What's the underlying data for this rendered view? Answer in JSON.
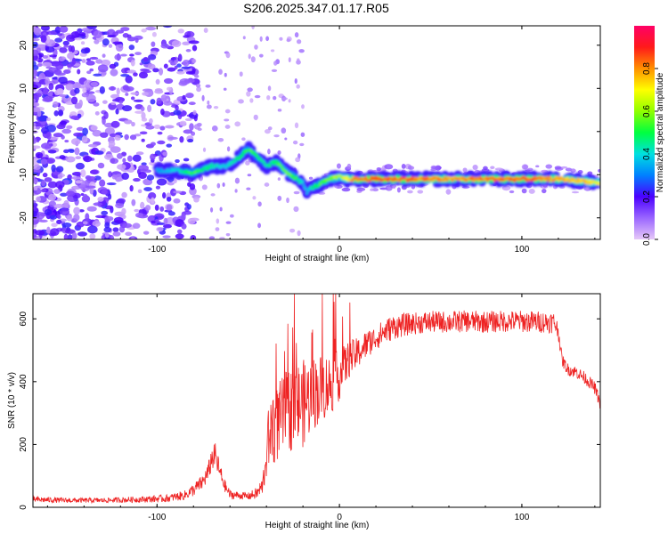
{
  "figure": {
    "title": "S206.2025.347.01.17.R05"
  },
  "chart_data": [
    {
      "type": "heatmap",
      "xlabel": "Height of straight line (km)",
      "ylabel": "Frequency (Hz)",
      "xlim": [
        -168,
        143
      ],
      "ylim": [
        -25,
        24.5
      ],
      "x_ticks": [
        -100,
        0,
        100
      ],
      "y_ticks": [
        -20,
        -10,
        0,
        10,
        20
      ],
      "x_tick_labels": [
        "-100",
        "0",
        "100"
      ],
      "y_tick_labels": [
        "-20",
        "-10",
        "0",
        "10",
        "20"
      ],
      "colorbar": {
        "label": "Normalized spectral amplitude",
        "range": [
          0,
          1
        ],
        "ticks": [
          0.0,
          0.2,
          0.4,
          0.6,
          0.8
        ],
        "tick_labels": [
          "0.0",
          "0.2",
          "0.4",
          "0.6",
          "0.8"
        ],
        "colors": [
          "#e6c8f8",
          "#9a66ff",
          "#4b00ff",
          "#0080ff",
          "#00e0e0",
          "#00ff40",
          "#90ff00",
          "#ffff00",
          "#ff9000",
          "#ff1a1a",
          "#ff0066"
        ]
      },
      "ridge": {
        "x": [
          -100,
          -90,
          -80,
          -70,
          -62,
          -55,
          -50,
          -45,
          -40,
          -35,
          -30,
          -25,
          -20,
          -18,
          -15,
          -10,
          -5,
          0,
          5,
          10,
          20,
          40,
          60,
          80,
          100,
          120,
          135,
          143
        ],
        "y": [
          -9,
          -9,
          -9.5,
          -8,
          -8,
          -6,
          -4,
          -6,
          -8,
          -7,
          -9,
          -10.5,
          -12,
          -14,
          -13,
          -12,
          -11,
          -10.5,
          -11,
          -11,
          -11,
          -11,
          -11,
          -11,
          -11,
          -11,
          -11.5,
          -12
        ],
        "amplitude": [
          0.35,
          0.4,
          0.55,
          0.45,
          0.4,
          0.5,
          0.55,
          0.5,
          0.45,
          0.5,
          0.6,
          0.55,
          0.4,
          0.35,
          0.45,
          0.55,
          0.6,
          0.65,
          0.75,
          0.85,
          0.9,
          0.85,
          0.8,
          0.85,
          0.85,
          0.8,
          0.75,
          0.7
        ]
      }
    },
    {
      "type": "line",
      "xlabel": "Height of straight line (km)",
      "ylabel": "SNR (10 * v/v)",
      "xlim": [
        -168,
        143
      ],
      "ylim": [
        0,
        680
      ],
      "x_ticks": [
        -100,
        0,
        100
      ],
      "y_ticks": [
        0,
        200,
        400,
        600
      ],
      "x_tick_labels": [
        "-100",
        "0",
        "100"
      ],
      "y_tick_labels": [
        "0",
        "200",
        "400",
        "600"
      ],
      "color": "#ee2222",
      "series": [
        {
          "x": [
            -168,
            -150,
            -130,
            -110,
            -95,
            -85,
            -80,
            -75,
            -72,
            -70,
            -68,
            -66,
            -63,
            -60,
            -55,
            -50,
            -45,
            -42,
            -40,
            -38,
            -35,
            -30,
            -25,
            -20,
            -15,
            -10,
            -5,
            0,
            5,
            10,
            15,
            20,
            25,
            30,
            40,
            50,
            60,
            70,
            80,
            90,
            100,
            110,
            115,
            118,
            120,
            122,
            125,
            130,
            135,
            140,
            143
          ],
          "y": [
            25,
            22,
            22,
            25,
            28,
            38,
            55,
            80,
            110,
            155,
            165,
            120,
            70,
            40,
            38,
            35,
            45,
            70,
            180,
            240,
            260,
            300,
            320,
            330,
            360,
            380,
            390,
            420,
            470,
            490,
            520,
            540,
            560,
            575,
            585,
            590,
            590,
            592,
            590,
            592,
            592,
            590,
            590,
            588,
            560,
            470,
            440,
            430,
            410,
            380,
            330
          ],
          "noise": [
            10,
            8,
            8,
            10,
            12,
            15,
            20,
            25,
            30,
            40,
            40,
            35,
            20,
            15,
            12,
            12,
            20,
            30,
            90,
            110,
            120,
            130,
            140,
            140,
            120,
            110,
            100,
            80,
            60,
            50,
            45,
            40,
            40,
            40,
            35,
            35,
            35,
            35,
            35,
            35,
            35,
            35,
            35,
            35,
            25,
            20,
            20,
            20,
            20,
            20,
            20
          ]
        }
      ]
    }
  ]
}
